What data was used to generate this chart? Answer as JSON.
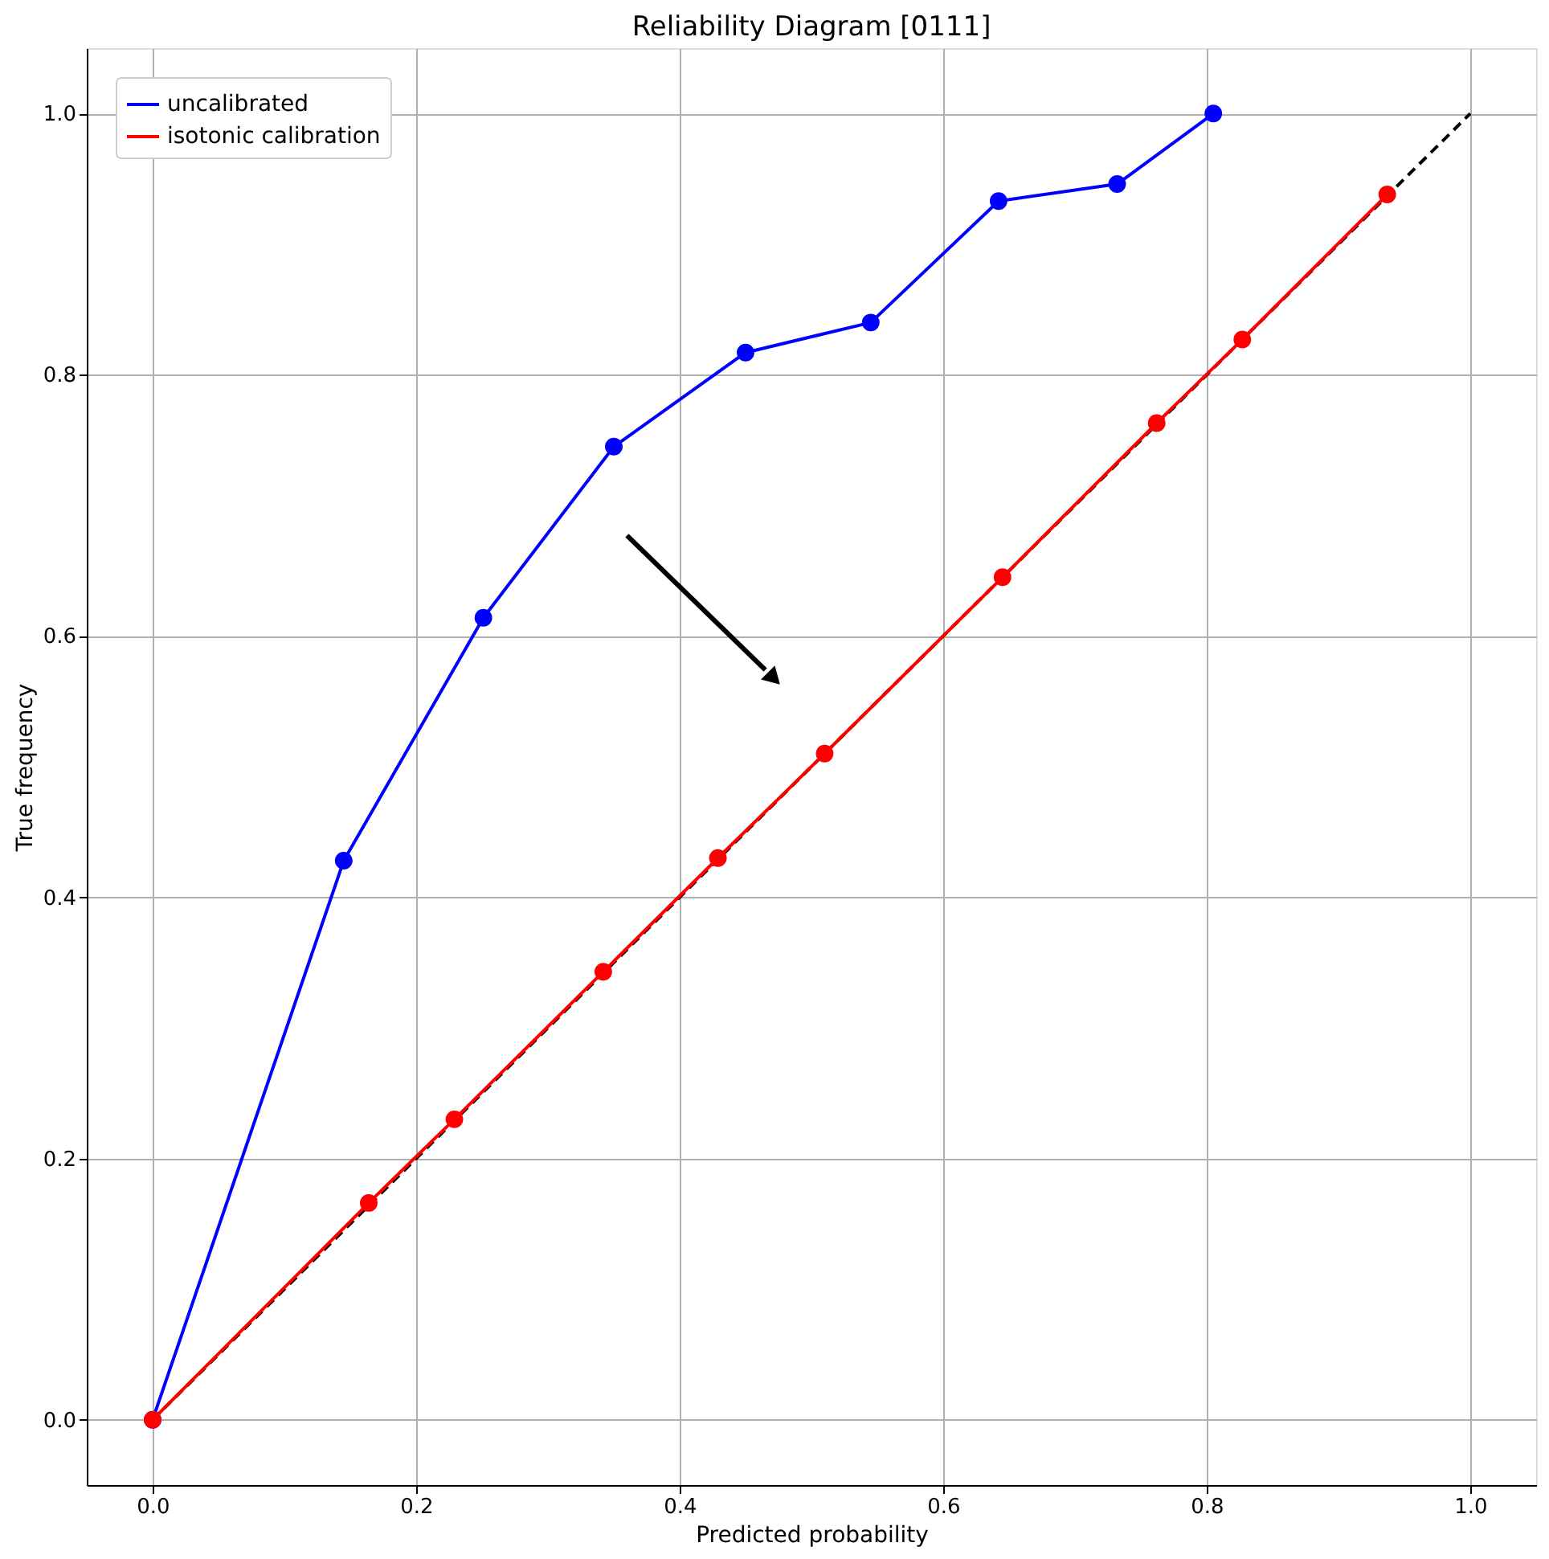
{
  "chart_data": {
    "type": "line",
    "title": "Reliability Diagram [0111]",
    "xlabel": "Predicted probability",
    "ylabel": "True frequency",
    "xlim": [
      -0.05,
      1.05
    ],
    "ylim": [
      -0.05,
      1.05
    ],
    "xticks": [
      {
        "value": 0,
        "label": "0.0"
      },
      0.2,
      0.4,
      0.6,
      0.8,
      {
        "value": 1,
        "label": "1.0"
      }
    ],
    "yticks": [
      {
        "value": 0,
        "label": "0.0"
      },
      0.2,
      0.4,
      0.6,
      0.8,
      {
        "value": 1,
        "label": "1.0"
      }
    ],
    "grid": true,
    "legend": "top left",
    "marker": "circle",
    "series": [
      {
        "color": "#000000",
        "type": "line",
        "line_style": "dashed",
        "marker": "none",
        "x": [
          0,
          1
        ],
        "values": [
          0,
          1
        ]
      },
      {
        "name": "uncalibrated",
        "color": "#0000ff",
        "x": [
          0,
          0.145,
          0.251,
          0.35,
          0.45,
          0.545,
          0.642,
          0.732,
          0.805
        ],
        "values": [
          0,
          0.428,
          0.614,
          0.745,
          0.817,
          0.84,
          0.933,
          0.946,
          1.0
        ]
      },
      {
        "name": "isotonic calibration",
        "color": "#ff0000",
        "x": [
          0,
          0.164,
          0.229,
          0.342,
          0.429,
          0.51,
          0.645,
          0.762,
          0.827,
          0.937
        ],
        "values": [
          0,
          0.166,
          0.23,
          0.343,
          0.43,
          0.51,
          0.645,
          0.763,
          0.827,
          0.938
        ]
      }
    ]
  }
}
